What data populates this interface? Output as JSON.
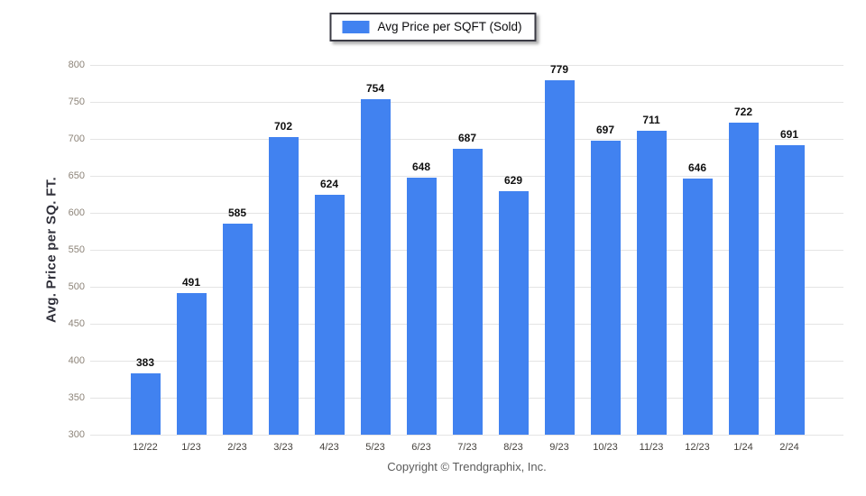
{
  "legend": {
    "label": "Avg Price per SQFT (Sold)"
  },
  "chart_data": {
    "type": "bar",
    "title": "",
    "categories": [
      "12/22",
      "1/23",
      "2/23",
      "3/23",
      "4/23",
      "5/23",
      "6/23",
      "7/23",
      "8/23",
      "9/23",
      "10/23",
      "11/23",
      "12/23",
      "1/24",
      "2/24"
    ],
    "values": [
      383,
      491,
      585,
      702,
      624,
      754,
      648,
      687,
      629,
      779,
      697,
      711,
      646,
      722,
      691
    ],
    "series_name": "Avg Price per SQFT (Sold)",
    "xlabel": "",
    "ylabel": "Avg. Price per SQ. FT.",
    "ylim": [
      300,
      800
    ],
    "ytick_interval": 50,
    "grid": "horizontal",
    "legend_position": "top-center",
    "bar_color": "#4182f0",
    "value_labels_shown": true
  },
  "footer": {
    "copyright": "Copyright © Trendgraphix, Inc."
  }
}
